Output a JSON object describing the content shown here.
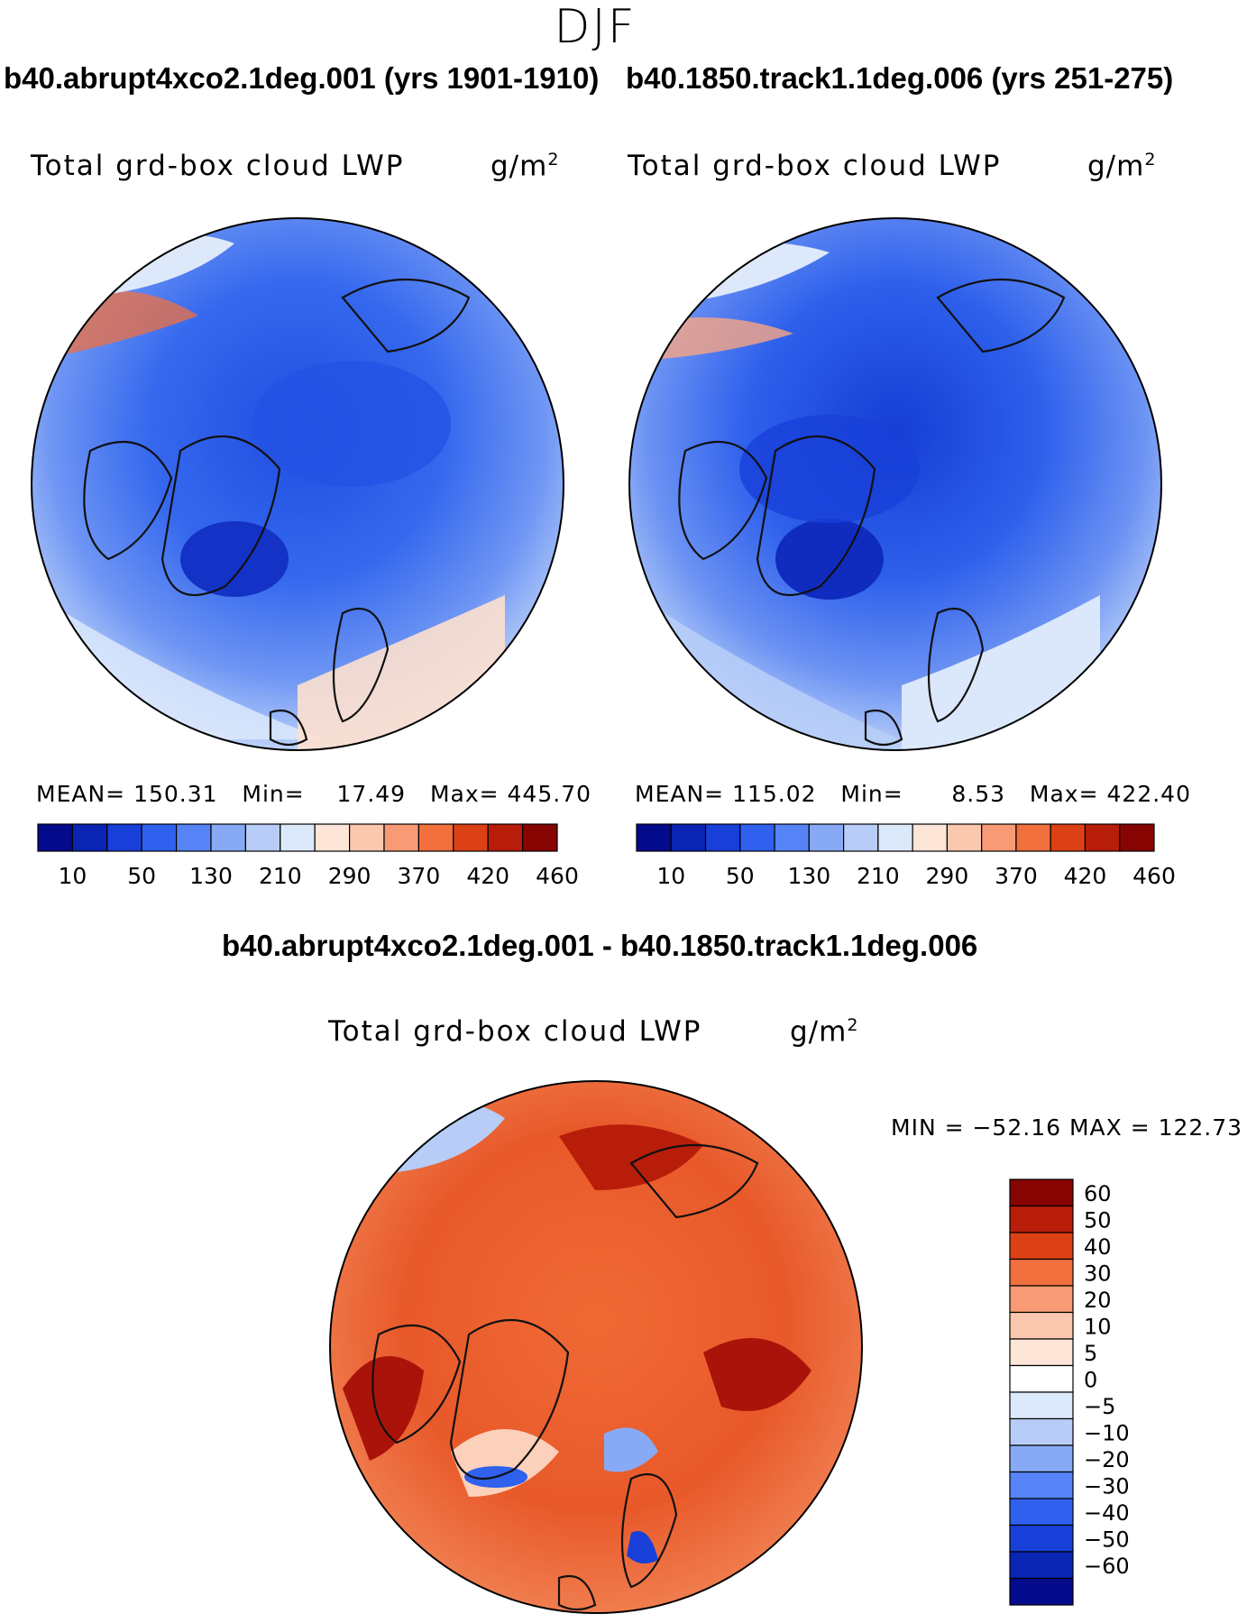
{
  "figure": {
    "season": "DJF",
    "panels": [
      {
        "case_title": "b40.abrupt4xco2.1deg.001 (yrs 1901-1910)",
        "variable": "Total grd-box cloud LWP",
        "units_base": "g/m",
        "units_exp": "2",
        "stats": {
          "mean_label": "MEAN=",
          "mean": "150.31",
          "min_label": "Min=",
          "min": "17.49",
          "max_label": "Max=",
          "max": "445.70"
        }
      },
      {
        "case_title": "b40.1850.track1.1deg.006 (yrs 251-275)",
        "variable": "Total grd-box cloud LWP",
        "units_base": "g/m",
        "units_exp": "2",
        "stats": {
          "mean_label": "MEAN=",
          "mean": "115.02",
          "min_label": "Min=",
          "min": "8.53",
          "max_label": "Max=",
          "max": "422.40"
        }
      }
    ],
    "difference": {
      "title": "b40.abrupt4xco2.1deg.001 - b40.1850.track1.1deg.006",
      "variable": "Total grd-box cloud LWP",
      "units_base": "g/m",
      "units_exp": "2",
      "minmax": "MIN = −52.16 MAX = 122.73"
    }
  },
  "chart_data": [
    {
      "type": "heatmap",
      "projection": "north-polar-stereographic",
      "title": "b40.abrupt4xco2.1deg.001 (yrs 1901-1910)",
      "variable": "Total grd-box cloud LWP",
      "units": "g/m2",
      "colorbar": {
        "orientation": "horizontal",
        "levels_labeled": [
          10,
          50,
          130,
          210,
          290,
          370,
          420,
          460
        ],
        "colors": [
          "#040a8c",
          "#0a24b4",
          "#1840d8",
          "#2f60ee",
          "#5684f6",
          "#88aaf6",
          "#b7cdf8",
          "#dce9fb",
          "#fde6d8",
          "#fbc7ae",
          "#f79a75",
          "#f1703e",
          "#dc4116",
          "#b81d0a",
          "#860503"
        ]
      },
      "stats": {
        "mean": 150.31,
        "min": 17.49,
        "max": 445.7
      }
    },
    {
      "type": "heatmap",
      "projection": "north-polar-stereographic",
      "title": "b40.1850.track1.1deg.006 (yrs 251-275)",
      "variable": "Total grd-box cloud LWP",
      "units": "g/m2",
      "colorbar": {
        "orientation": "horizontal",
        "levels_labeled": [
          10,
          50,
          130,
          210,
          290,
          370,
          420,
          460
        ],
        "colors": [
          "#040a8c",
          "#0a24b4",
          "#1840d8",
          "#2f60ee",
          "#5684f6",
          "#88aaf6",
          "#b7cdf8",
          "#dce9fb",
          "#fde6d8",
          "#fbc7ae",
          "#f79a75",
          "#f1703e",
          "#dc4116",
          "#b81d0a",
          "#860503"
        ]
      },
      "stats": {
        "mean": 115.02,
        "min": 8.53,
        "max": 422.4
      }
    },
    {
      "type": "heatmap",
      "projection": "north-polar-stereographic",
      "title": "b40.abrupt4xco2.1deg.001 - b40.1850.track1.1deg.006",
      "variable": "Total grd-box cloud LWP",
      "units": "g/m2",
      "colorbar": {
        "orientation": "vertical",
        "levels_labeled": [
          60,
          50,
          40,
          30,
          20,
          10,
          5,
          0,
          -5,
          -10,
          -20,
          -30,
          -40,
          -50,
          -60
        ],
        "colors": [
          "#860503",
          "#b81d0a",
          "#dc4116",
          "#f1703e",
          "#f79a75",
          "#fbc7ae",
          "#fde6d8",
          "#ffffff",
          "#dce9fb",
          "#b7cdf8",
          "#88aaf6",
          "#5684f6",
          "#2f60ee",
          "#1840d8",
          "#0a24b4",
          "#040a8c"
        ]
      },
      "stats": {
        "min": -52.16,
        "max": 122.73
      }
    }
  ]
}
